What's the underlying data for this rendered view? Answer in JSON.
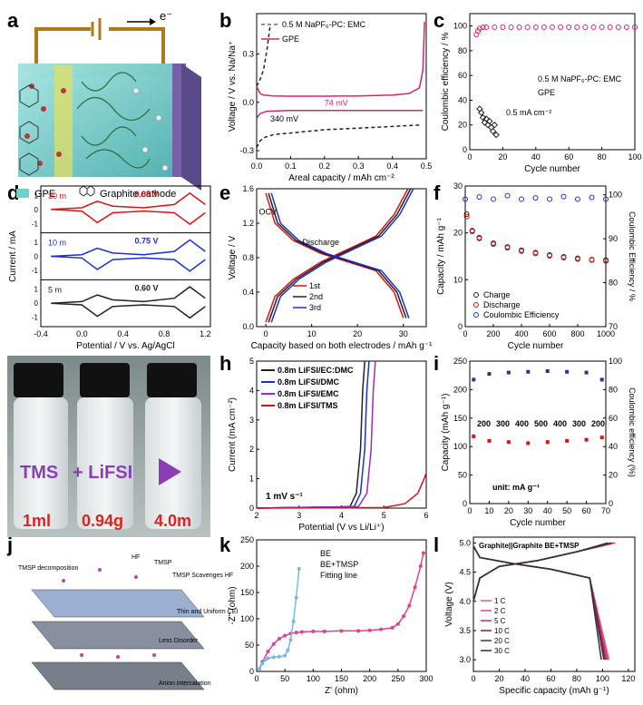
{
  "panel_letters": [
    "a",
    "b",
    "c",
    "d",
    "e",
    "f",
    "g",
    "h",
    "i",
    "j",
    "k",
    "l"
  ],
  "panel_a": {
    "electron_label": "e⁻",
    "legend_gpe": "GPE",
    "legend_cathode": "Graphite cathode"
  },
  "panel_g": {
    "label_tms": "TMS",
    "label_plus": "+ LiFSI",
    "vol": "1ml",
    "mass": "0.94g",
    "conc": "4.0m"
  },
  "panel_j": {
    "labels": [
      "TMSP decomposition",
      "HF",
      "TMSP",
      "TMSP Scavenges HF",
      "Thin and Uniform CEI",
      "Less Disorder",
      "Anion intercalation"
    ]
  },
  "colors": {
    "black": "#222222",
    "magenta": "#d6246e",
    "red": "#dd1111",
    "blue": "#1a2fd6",
    "purple": "#9b29c4",
    "navy": "#27368c",
    "pink": "#e0408f",
    "lightblue": "#7ab7e6"
  },
  "chart_data": [
    {
      "id": "b",
      "type": "line",
      "xlabel": "Areal capacity / mAh cm⁻²",
      "ylabel": "Voltage / V vs. Na/Na⁺",
      "xlim": [
        0,
        0.5
      ],
      "ylim": [
        -0.35,
        0.55
      ],
      "xticks": [
        "0.0",
        "0.1",
        "0.2",
        "0.3",
        "0.4",
        "0.5"
      ],
      "yticks": [
        "-0.3",
        "0.0",
        "0.3"
      ],
      "legend": [
        "0.5 M NaPF₆-PC: EMC",
        "GPE"
      ],
      "annotations": [
        "340 mV",
        "74 mV"
      ],
      "series": [
        {
          "name": "0.5 M NaPF₆-PC: EMC",
          "style": "dashed",
          "color": "#222222",
          "x": [
            0.0,
            0.005,
            0.01,
            0.015,
            0.02,
            0.025,
            0.03,
            0.035,
            0.04
          ],
          "y": [
            0.1,
            0.12,
            0.14,
            0.17,
            0.2,
            0.26,
            0.32,
            0.4,
            0.48
          ]
        },
        {
          "name": "0.5 M NaPF₆-PC: EMC strip",
          "style": "dashed",
          "color": "#222222",
          "x": [
            0.0,
            0.01,
            0.02,
            0.05,
            0.1,
            0.2,
            0.3,
            0.4,
            0.48
          ],
          "y": [
            -0.28,
            -0.24,
            -0.22,
            -0.2,
            -0.19,
            -0.17,
            -0.16,
            -0.15,
            -0.14
          ]
        },
        {
          "name": "GPE",
          "style": "solid",
          "color": "#d6246e",
          "x": [
            0.0,
            0.01,
            0.02,
            0.05,
            0.1,
            0.2,
            0.3,
            0.4,
            0.45,
            0.48,
            0.49,
            0.495
          ],
          "y": [
            0.1,
            0.055,
            0.045,
            0.04,
            0.038,
            0.038,
            0.04,
            0.045,
            0.055,
            0.09,
            0.2,
            0.5
          ]
        },
        {
          "name": "GPE strip",
          "style": "solid",
          "color": "#d6246e",
          "x": [
            0.0,
            0.01,
            0.03,
            0.1,
            0.2,
            0.3,
            0.4,
            0.49
          ],
          "y": [
            -0.1,
            -0.07,
            -0.055,
            -0.05,
            -0.05,
            -0.05,
            -0.05,
            -0.05
          ]
        }
      ]
    },
    {
      "id": "c",
      "type": "scatter",
      "xlabel": "Cycle number",
      "ylabel": "Coulombic efficiency / %",
      "xlim": [
        0,
        100
      ],
      "ylim": [
        0,
        110
      ],
      "xticks": [
        "0",
        "20",
        "40",
        "60",
        "80",
        "100"
      ],
      "yticks": [
        "0",
        "20",
        "40",
        "60",
        "80",
        "100"
      ],
      "legend": [
        "0.5 M NaPF₆-PC: EMC",
        "GPE"
      ],
      "annotation": "0.5 mA cm⁻²",
      "series": [
        {
          "name": "0.5 M NaPF₆-PC: EMC",
          "marker": "diamond",
          "color": "#222222",
          "x": [
            6,
            7,
            8,
            9,
            10,
            11,
            12,
            13,
            14,
            15,
            16
          ],
          "y": [
            33,
            30,
            26,
            22,
            25,
            20,
            23,
            18,
            15,
            20,
            12
          ]
        },
        {
          "name": "GPE",
          "marker": "circle",
          "color": "#d6246e",
          "x": [
            4,
            5,
            6,
            8,
            10,
            15,
            20,
            25,
            30,
            35,
            40,
            45,
            50,
            55,
            60,
            65,
            70,
            75,
            80,
            85,
            90,
            95,
            100
          ],
          "y": [
            93,
            96,
            98,
            99,
            99,
            99,
            99,
            99,
            99,
            99,
            99,
            99,
            99,
            99,
            99,
            99,
            99,
            99,
            99,
            99,
            99,
            99,
            99
          ]
        }
      ]
    },
    {
      "id": "d",
      "type": "line",
      "xlabel": "Potential / V vs. Ag/AgCl",
      "ylabel": "Current / mA",
      "xlim": [
        -0.4,
        1.25
      ],
      "xticks": [
        "-0.4",
        "0.0",
        "0.4",
        "0.8",
        "1.2"
      ],
      "rows": [
        {
          "label": "30 m",
          "color": "#dd1111",
          "gap": "0.95 V",
          "yticks": [
            "-1",
            "0",
            "1"
          ]
        },
        {
          "label": "10 m",
          "color": "#1a2fd6",
          "gap": "0.75 V",
          "yticks": [
            "-1",
            "0",
            "1"
          ]
        },
        {
          "label": "5 m",
          "color": "#222222",
          "gap": "0.60 V",
          "yticks": [
            "-1",
            "0",
            "1"
          ]
        }
      ]
    },
    {
      "id": "e",
      "type": "line",
      "xlabel": "Capacity based on both electrodes / mAh g⁻¹",
      "ylabel": "Voltage / V",
      "xlim": [
        -2,
        35
      ],
      "ylim": [
        0,
        1.6
      ],
      "xticks": [
        "0",
        "10",
        "20",
        "30"
      ],
      "yticks": [
        "0.0",
        "0.4",
        "0.8",
        "1.2",
        "1.6"
      ],
      "annotations": [
        "OCV",
        "Discharge"
      ],
      "series": [
        {
          "name": "1st",
          "color": "#dd1111"
        },
        {
          "name": "2nd",
          "color": "#222222"
        },
        {
          "name": "3rd",
          "color": "#1a2fd6"
        }
      ]
    },
    {
      "id": "f",
      "type": "scatter",
      "xlabel": "Cycle number",
      "ylabel": "Capacity / mAh g⁻¹",
      "y2label": "Coulombic Efficiency / %",
      "xlim": [
        0,
        1000
      ],
      "ylim": [
        0,
        30
      ],
      "y2lim": [
        70,
        102
      ],
      "xticks": [
        "0",
        "200",
        "400",
        "600",
        "800",
        "1000"
      ],
      "yticks": [
        "0",
        "10",
        "20",
        "30"
      ],
      "y2ticks": [
        "70",
        "80",
        "90",
        "100"
      ],
      "legend": [
        "Charge",
        "Discharge",
        "Coulombic Efficiency"
      ],
      "series": [
        {
          "name": "Charge",
          "color": "#222222",
          "x": [
            10,
            50,
            100,
            200,
            300,
            400,
            500,
            600,
            700,
            800,
            900,
            1000
          ],
          "y": [
            24,
            20.5,
            19,
            17.8,
            17,
            16.3,
            15.8,
            15.3,
            14.9,
            14.6,
            14.3,
            14.2
          ]
        },
        {
          "name": "Discharge",
          "color": "#dd1111",
          "x": [
            10,
            50,
            100,
            200,
            300,
            400,
            500,
            600,
            700,
            800,
            900,
            1000
          ],
          "y": [
            23.5,
            20.3,
            18.8,
            17.6,
            16.8,
            16.1,
            15.6,
            15.1,
            14.7,
            14.4,
            14.2,
            14.0
          ]
        },
        {
          "name": "Coulombic Efficiency",
          "color": "#1a2fd6",
          "x": [
            0,
            100,
            200,
            300,
            400,
            500,
            600,
            700,
            800,
            900,
            1000
          ],
          "y2": [
            99,
            99.5,
            99,
            99.8,
            99,
            99.3,
            99,
            99.6,
            99,
            99.4,
            99
          ]
        }
      ]
    },
    {
      "id": "h",
      "type": "line",
      "xlabel": "Potential (V vs Li/Li⁺)",
      "ylabel": "Current (mA cm⁻²)",
      "xlim": [
        2,
        6
      ],
      "ylim": [
        0,
        5
      ],
      "xticks": [
        "2",
        "3",
        "4",
        "5",
        "6"
      ],
      "yticks": [
        "0",
        "1",
        "2",
        "3",
        "4",
        "5"
      ],
      "annotation": "1 mV s⁻¹",
      "series": [
        {
          "name": "0.8m LiFSI/EC:DMC",
          "color": "#222222",
          "x": [
            2,
            4.2,
            4.35,
            4.45,
            4.5,
            4.55
          ],
          "y": [
            0,
            0.05,
            0.5,
            2,
            4,
            5
          ]
        },
        {
          "name": "0.8m LiFSI/DMC",
          "color": "#1a2fd6",
          "x": [
            2,
            4.3,
            4.45,
            4.55,
            4.6,
            4.65
          ],
          "y": [
            0,
            0.05,
            0.5,
            2,
            4,
            5
          ]
        },
        {
          "name": "0.8m LiFSI/EMC",
          "color": "#9b29c4",
          "x": [
            2,
            4.4,
            4.6,
            4.7,
            4.75,
            4.8
          ],
          "y": [
            0,
            0.05,
            0.5,
            2,
            4,
            5
          ]
        },
        {
          "name": "0.8m LiFSI/TMS",
          "color": "#dd1111",
          "x": [
            2,
            5.0,
            5.5,
            5.8,
            5.95,
            6.0
          ],
          "y": [
            0,
            0.02,
            0.15,
            0.5,
            1.0,
            1.2
          ]
        }
      ]
    },
    {
      "id": "i",
      "type": "scatter",
      "xlabel": "Cycle number",
      "ylabel": "Capacity (mAh g⁻¹)",
      "y2label": "Coulombic efficiency (%)",
      "xlim": [
        0,
        70
      ],
      "ylim": [
        0,
        250
      ],
      "y2lim": [
        0,
        100
      ],
      "xticks": [
        "0",
        "10",
        "20",
        "30",
        "40",
        "50",
        "60",
        "70"
      ],
      "yticks": [
        "0",
        "50",
        "100",
        "150",
        "200",
        "250"
      ],
      "y2ticks": [
        "0",
        "20",
        "40",
        "60",
        "80",
        "100"
      ],
      "rate_labels": [
        "200",
        "300",
        "400",
        "500",
        "400",
        "300",
        "200"
      ],
      "unit_note": "unit: mA g⁻¹",
      "series": [
        {
          "name": "Capacity",
          "color": "#dd1111",
          "x": [
            2,
            10,
            20,
            30,
            40,
            50,
            60,
            68
          ],
          "y": [
            118,
            110,
            108,
            106,
            108,
            110,
            112,
            116
          ]
        },
        {
          "name": "Coulombic efficiency",
          "color": "#27368c",
          "x": [
            2,
            10,
            20,
            30,
            40,
            50,
            60,
            68
          ],
          "y2": [
            87,
            91,
            92,
            92.5,
            93,
            92.5,
            92,
            87
          ]
        }
      ]
    },
    {
      "id": "k",
      "type": "scatter",
      "xlabel": "Z' (ohm)",
      "ylabel": "-Z'' (ohm)",
      "xlim": [
        0,
        300
      ],
      "ylim": [
        0,
        250
      ],
      "xticks": [
        "0",
        "50",
        "100",
        "150",
        "200",
        "250",
        "300"
      ],
      "yticks": [
        "0",
        "50",
        "100",
        "150",
        "200",
        "250"
      ],
      "legend": [
        "BE",
        "BE+TMSP",
        "Fitting line"
      ],
      "series": [
        {
          "name": "BE",
          "color": "#e0408f",
          "x": [
            5,
            10,
            20,
            30,
            40,
            50,
            60,
            70,
            80,
            100,
            120,
            150,
            180,
            200,
            220,
            240,
            250,
            260,
            270,
            280,
            290,
            295
          ],
          "y": [
            5,
            18,
            38,
            52,
            62,
            68,
            72,
            74,
            75,
            76,
            76,
            77,
            77,
            78,
            80,
            83,
            90,
            105,
            125,
            160,
            200,
            225
          ]
        },
        {
          "name": "BE+TMSP",
          "color": "#7ab7e6",
          "x": [
            5,
            10,
            15,
            20,
            30,
            40,
            50,
            55,
            60,
            65,
            70,
            75
          ],
          "y": [
            5,
            15,
            22,
            25,
            27,
            28,
            30,
            40,
            60,
            95,
            140,
            195
          ]
        }
      ]
    },
    {
      "id": "l",
      "type": "line",
      "xlabel": "Specific capacity (mAh g⁻¹)",
      "ylabel": "Voltage (V)",
      "xlim": [
        0,
        125
      ],
      "ylim": [
        2.8,
        5.1
      ],
      "xticks": [
        "0",
        "20",
        "40",
        "60",
        "80",
        "100",
        "120"
      ],
      "yticks": [
        "3.0",
        "3.5",
        "4.0",
        "4.5",
        "5.0"
      ],
      "annotation": "Graphite||Graphite  BE+TMSP",
      "series": [
        {
          "name": "1 C",
          "color": "#f06060"
        },
        {
          "name": "2 C",
          "color": "#e0408f"
        },
        {
          "name": "5 C",
          "color": "#c03070"
        },
        {
          "name": "10 C",
          "color": "#802050"
        },
        {
          "name": "20 C",
          "color": "#50304a"
        },
        {
          "name": "30 C",
          "color": "#333333"
        }
      ]
    }
  ]
}
